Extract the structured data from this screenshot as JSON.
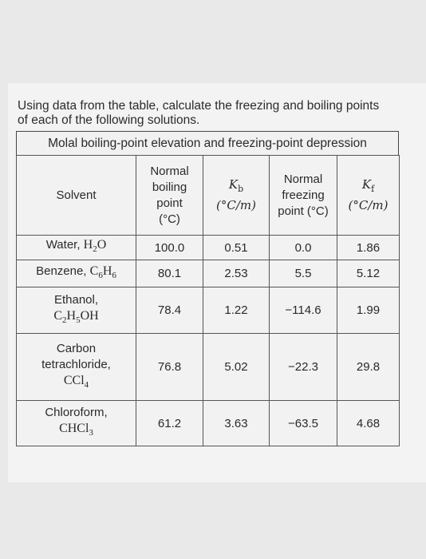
{
  "prompt": {
    "text": "Using data from the table, calculate the freezing and boiling points of each of the following solutions."
  },
  "table": {
    "caption": "Molal boiling-point elevation and freezing-point depression",
    "headers": {
      "solvent": "Solvent",
      "bp_line1": "Normal",
      "bp_line2": "boiling",
      "bp_line3": "point",
      "bp_unit": "(°C)",
      "kb_symbol": "Kb",
      "kb_unit": "(°C/m)",
      "fp_line1": "Normal",
      "fp_line2": "freezing",
      "fp_line3": "point (°C)",
      "kf_symbol": "Kf",
      "kf_unit": "(°C/m)"
    },
    "rows": [
      {
        "solvent_line1": "Water,",
        "formula": "H2O",
        "bp": "100.0",
        "kb": "0.51",
        "fp": "0.0",
        "kf": "1.86"
      },
      {
        "solvent_line1": "Benzene,",
        "formula": "C6H6",
        "bp": "80.1",
        "kb": "2.53",
        "fp": "5.5",
        "kf": "5.12"
      },
      {
        "solvent_line1": "Ethanol,",
        "formula": "C2H5OH",
        "bp": "78.4",
        "kb": "1.22",
        "fp": "−114.6",
        "kf": "1.99"
      },
      {
        "solvent_line1": "Carbon",
        "solvent_line2": "tetrachloride,",
        "formula": "CCl4",
        "bp": "76.8",
        "kb": "5.02",
        "fp": "−22.3",
        "kf": "29.8"
      },
      {
        "solvent_line1": "Chloroform,",
        "formula": "CHCl3",
        "bp": "61.2",
        "kb": "3.63",
        "fp": "−63.5",
        "kf": "4.68"
      }
    ]
  }
}
